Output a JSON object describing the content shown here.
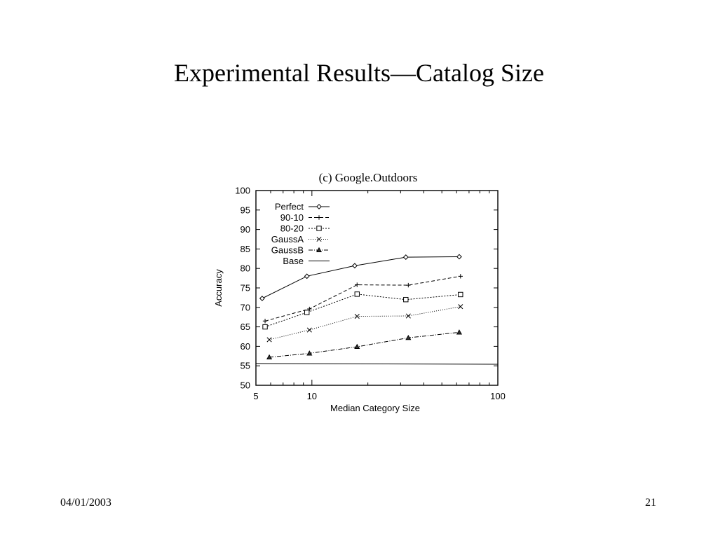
{
  "slide": {
    "title": "Experimental Results—Catalog Size",
    "date": "04/01/2003",
    "page_number": "21"
  },
  "chart_data": {
    "type": "line",
    "title": "(c) Google.Outdoors",
    "xlabel": "Median Category Size",
    "ylabel": "Accuracy",
    "xscale": "log",
    "xlim": [
      5,
      100
    ],
    "ylim": [
      50,
      100
    ],
    "xticks": [
      5,
      10,
      100
    ],
    "yticks": [
      50,
      55,
      60,
      65,
      70,
      75,
      80,
      85,
      90,
      95,
      100
    ],
    "grid": false,
    "legend_position": "top-left",
    "series": [
      {
        "name": "Perfect",
        "marker": "diamond",
        "dash": "",
        "x": [
          5.4,
          9.4,
          17,
          32,
          62
        ],
        "values": [
          72.3,
          78.0,
          80.7,
          82.9,
          83.0
        ]
      },
      {
        "name": "90-10",
        "marker": "plus",
        "dash": "5,3",
        "x": [
          5.6,
          9.7,
          17.5,
          33,
          63
        ],
        "values": [
          66.5,
          69.6,
          75.8,
          75.7,
          78.0
        ]
      },
      {
        "name": "80-20",
        "marker": "square",
        "dash": "2,2",
        "x": [
          5.6,
          9.4,
          17.5,
          32,
          63
        ],
        "values": [
          65.0,
          68.7,
          73.4,
          72.0,
          73.3
        ]
      },
      {
        "name": "GaussA",
        "marker": "x",
        "dash": "1,2",
        "x": [
          5.9,
          9.7,
          17.5,
          33,
          63
        ],
        "values": [
          61.7,
          64.2,
          67.7,
          67.8,
          70.2
        ]
      },
      {
        "name": "GaussB",
        "marker": "triangle",
        "dash": "6,2,1,2",
        "x": [
          5.9,
          9.7,
          17.5,
          33,
          62
        ],
        "values": [
          57.2,
          58.2,
          59.9,
          62.2,
          63.6
        ]
      },
      {
        "name": "Base",
        "marker": "none",
        "dash": "",
        "x": [
          5,
          100
        ],
        "values": [
          55.6,
          55.4
        ]
      }
    ]
  }
}
